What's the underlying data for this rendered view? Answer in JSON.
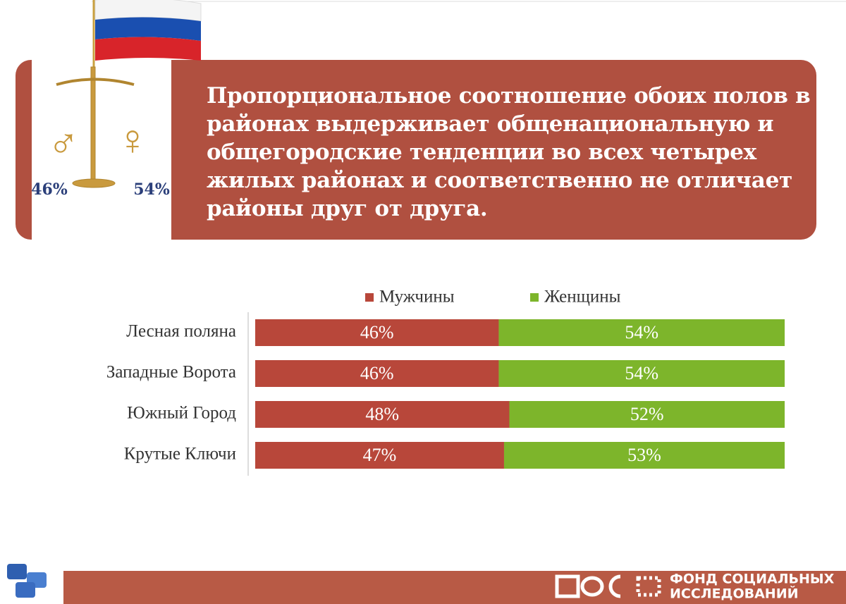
{
  "header": {
    "text": "Пропорциональное соотношение обоих полов в районах выдерживает общенациональную и общегородские тенденции во всех четырех жилых районах и соответственно не отличает районы друг от друга.",
    "scale_labels": [
      "46%",
      "54%"
    ]
  },
  "chart_data": {
    "type": "stacked-hbar",
    "categories": [
      "Лесная поляна",
      "Западные Ворота",
      "Южный Город",
      "Крутые Ключи"
    ],
    "series": [
      {
        "name": "Мужчины",
        "color": "#b8473a",
        "values": [
          46,
          46,
          48,
          47
        ],
        "value_labels": [
          "46%",
          "46%",
          "48%",
          "47%"
        ]
      },
      {
        "name": "Женщины",
        "color": "#7db52b",
        "values": [
          54,
          54,
          52,
          53
        ],
        "value_labels": [
          "54%",
          "54%",
          "52%",
          "53%"
        ]
      }
    ],
    "xlim": [
      0,
      100
    ]
  },
  "footer": {
    "logo_lines": [
      "ФОНД СОЦИАЛЬНЫХ",
      "ИССЛЕДОВАНИЙ"
    ]
  }
}
